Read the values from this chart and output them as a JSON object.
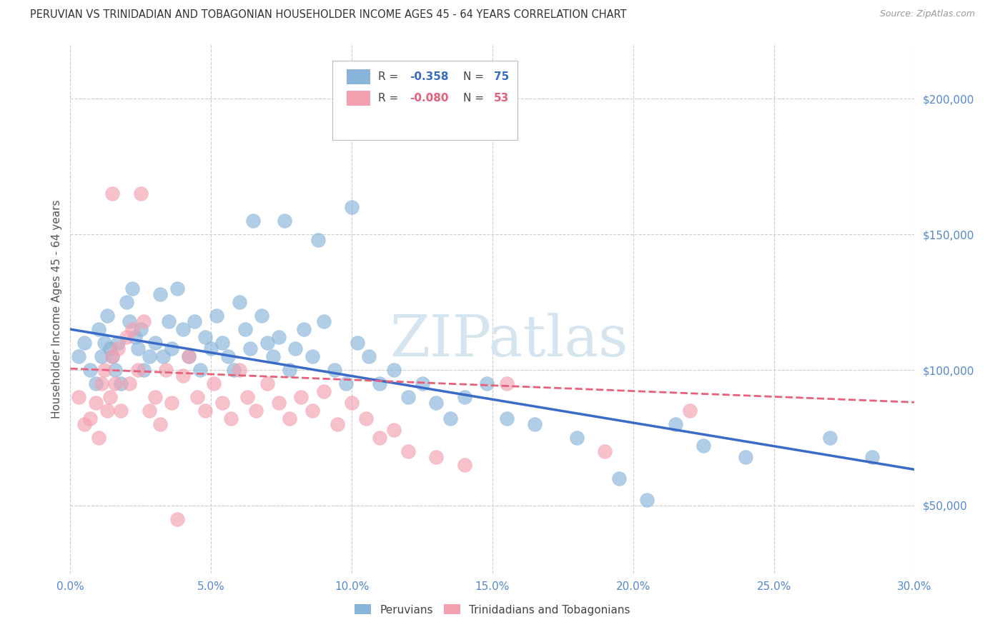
{
  "title": "PERUVIAN VS TRINIDADIAN AND TOBAGONIAN HOUSEHOLDER INCOME AGES 45 - 64 YEARS CORRELATION CHART",
  "source": "Source: ZipAtlas.com",
  "ylabel": "Householder Income Ages 45 - 64 years",
  "xlabel_ticks": [
    "0.0%",
    "5.0%",
    "10.0%",
    "15.0%",
    "20.0%",
    "25.0%",
    "30.0%"
  ],
  "xlabel_vals": [
    0.0,
    5.0,
    10.0,
    15.0,
    20.0,
    25.0,
    30.0
  ],
  "ylabel_ticks": [
    "$50,000",
    "$100,000",
    "$150,000",
    "$200,000"
  ],
  "ylabel_vals": [
    50000,
    100000,
    150000,
    200000
  ],
  "xlim": [
    0.0,
    30.0
  ],
  "ylim": [
    25000,
    220000
  ],
  "blue_color": "#89B4D9",
  "pink_color": "#F4A0B0",
  "blue_line_color": "#3A6BC9",
  "pink_line_color": "#E8607A",
  "title_color": "#333333",
  "source_color": "#999999",
  "axis_label_color": "#555555",
  "tick_color": "#5588CC",
  "watermark": "ZIPatlas",
  "watermark_color": "#D5E5F0",
  "legend1_label": "Peruvians",
  "legend2_label": "Trinidadians and Tobagonians",
  "blue_scatter_x": [
    0.3,
    0.5,
    0.7,
    0.9,
    1.0,
    1.1,
    1.2,
    1.3,
    1.4,
    1.5,
    1.6,
    1.7,
    1.8,
    2.0,
    2.1,
    2.2,
    2.3,
    2.4,
    2.5,
    2.6,
    2.8,
    3.0,
    3.2,
    3.3,
    3.5,
    3.6,
    3.8,
    4.0,
    4.2,
    4.4,
    4.6,
    4.8,
    5.0,
    5.2,
    5.4,
    5.6,
    5.8,
    6.0,
    6.2,
    6.4,
    6.8,
    7.0,
    7.2,
    7.4,
    7.8,
    8.0,
    8.3,
    8.6,
    9.0,
    9.4,
    9.8,
    10.2,
    10.6,
    11.0,
    11.5,
    12.0,
    12.5,
    13.0,
    13.5,
    14.0,
    14.8,
    15.5,
    16.5,
    18.0,
    19.5,
    20.5,
    21.5,
    22.5,
    24.0,
    27.0,
    28.5,
    6.5,
    7.6,
    8.8,
    10.0
  ],
  "blue_scatter_y": [
    105000,
    110000,
    100000,
    95000,
    115000,
    105000,
    110000,
    120000,
    108000,
    105000,
    100000,
    110000,
    95000,
    125000,
    118000,
    130000,
    112000,
    108000,
    115000,
    100000,
    105000,
    110000,
    128000,
    105000,
    118000,
    108000,
    130000,
    115000,
    105000,
    118000,
    100000,
    112000,
    108000,
    120000,
    110000,
    105000,
    100000,
    125000,
    115000,
    108000,
    120000,
    110000,
    105000,
    112000,
    100000,
    108000,
    115000,
    105000,
    118000,
    100000,
    95000,
    110000,
    105000,
    95000,
    100000,
    90000,
    95000,
    88000,
    82000,
    90000,
    95000,
    82000,
    80000,
    75000,
    60000,
    52000,
    80000,
    72000,
    68000,
    75000,
    68000,
    155000,
    155000,
    148000,
    160000
  ],
  "pink_scatter_x": [
    0.3,
    0.5,
    0.7,
    0.9,
    1.0,
    1.1,
    1.2,
    1.3,
    1.4,
    1.5,
    1.6,
    1.7,
    1.8,
    2.0,
    2.1,
    2.2,
    2.4,
    2.6,
    2.8,
    3.0,
    3.2,
    3.4,
    3.6,
    3.8,
    4.0,
    4.2,
    4.5,
    4.8,
    5.1,
    5.4,
    5.7,
    6.0,
    6.3,
    6.6,
    7.0,
    7.4,
    7.8,
    8.2,
    8.6,
    9.0,
    9.5,
    10.0,
    10.5,
    11.0,
    11.5,
    12.0,
    13.0,
    14.0,
    15.5,
    19.0,
    22.0,
    1.5,
    2.5
  ],
  "pink_scatter_y": [
    90000,
    80000,
    82000,
    88000,
    75000,
    95000,
    100000,
    85000,
    90000,
    105000,
    95000,
    108000,
    85000,
    112000,
    95000,
    115000,
    100000,
    118000,
    85000,
    90000,
    80000,
    100000,
    88000,
    45000,
    98000,
    105000,
    90000,
    85000,
    95000,
    88000,
    82000,
    100000,
    90000,
    85000,
    95000,
    88000,
    82000,
    90000,
    85000,
    92000,
    80000,
    88000,
    82000,
    75000,
    78000,
    70000,
    68000,
    65000,
    95000,
    70000,
    85000,
    165000,
    165000
  ]
}
